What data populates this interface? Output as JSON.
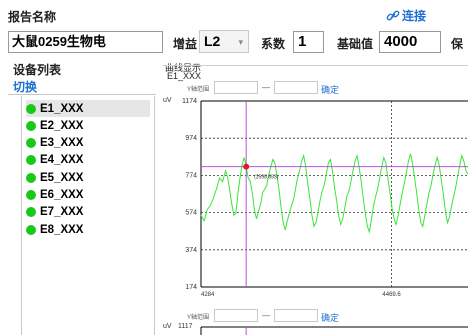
{
  "header": {
    "report_label": "报告名称",
    "connect_label": "连接",
    "report_name_value": "大鼠0259生物电",
    "gain_label": "增益",
    "gain_value": "L2",
    "coef_label": "系数",
    "coef_value": "1",
    "base_label": "基础值",
    "base_value": "4000",
    "trailing_label": "保"
  },
  "device_panel": {
    "title": "设备列表",
    "switch_label": "切换",
    "devices": [
      {
        "label": "E1_XXX",
        "selected": true
      },
      {
        "label": "E2_XXX",
        "selected": false
      },
      {
        "label": "E3_XXX",
        "selected": false
      },
      {
        "label": "E4_XXX",
        "selected": false
      },
      {
        "label": "E5_XXX",
        "selected": false
      },
      {
        "label": "E6_XXX",
        "selected": false
      },
      {
        "label": "E7_XXX",
        "selected": false
      },
      {
        "label": "E8_XXX",
        "selected": false
      }
    ]
  },
  "curve_panel": {
    "title": "曲线显示",
    "subtitle": "E1_XXX",
    "y_range_label": "Y轴范围",
    "range_separator": "—",
    "confirm_label": "确定",
    "unit_label": "uV",
    "second_unit_label": "uV",
    "second_top_tick": "1117"
  },
  "colors": {
    "accent": "#1e6fd1",
    "signal": "#39e639",
    "cursor": "#b455d6",
    "marker": "#d81e2a",
    "status_dot": "#19c919"
  },
  "chart_data": {
    "type": "line",
    "ylabel": "uV",
    "ylim": [
      174,
      1174
    ],
    "xlim": [
      4284,
      4544
    ],
    "y_ticks": [
      "1174",
      "974",
      "774",
      "574",
      "374",
      "174"
    ],
    "x_ticks": [
      {
        "value": 4284,
        "label": "4284"
      },
      {
        "value": 4469.6,
        "label": "4469.6"
      }
    ],
    "cursor": {
      "x": 4328,
      "y": 821,
      "label": "(2598.653)"
    },
    "series": [
      {
        "values": [
          [
            4284,
            560
          ],
          [
            4287,
            530
          ],
          [
            4290,
            590
          ],
          [
            4293,
            610
          ],
          [
            4296,
            650
          ],
          [
            4299,
            700
          ],
          [
            4302,
            760
          ],
          [
            4305,
            740
          ],
          [
            4308,
            800
          ],
          [
            4310,
            760
          ],
          [
            4312,
            690
          ],
          [
            4314,
            620
          ],
          [
            4316,
            560
          ],
          [
            4318,
            570
          ],
          [
            4320,
            680
          ],
          [
            4322,
            760
          ],
          [
            4324,
            830
          ],
          [
            4326,
            870
          ],
          [
            4328,
            821
          ],
          [
            4330,
            760
          ],
          [
            4332,
            740
          ],
          [
            4334,
            680
          ],
          [
            4336,
            590
          ],
          [
            4338,
            540
          ],
          [
            4340,
            580
          ],
          [
            4342,
            620
          ],
          [
            4344,
            680
          ],
          [
            4346,
            700
          ],
          [
            4348,
            720
          ],
          [
            4350,
            780
          ],
          [
            4352,
            820
          ],
          [
            4354,
            860
          ],
          [
            4356,
            840
          ],
          [
            4358,
            770
          ],
          [
            4360,
            700
          ],
          [
            4362,
            600
          ],
          [
            4364,
            520
          ],
          [
            4366,
            480
          ],
          [
            4368,
            530
          ],
          [
            4370,
            570
          ],
          [
            4372,
            610
          ],
          [
            4374,
            640
          ],
          [
            4376,
            700
          ],
          [
            4378,
            760
          ],
          [
            4380,
            800
          ],
          [
            4382,
            850
          ],
          [
            4384,
            880
          ],
          [
            4386,
            820
          ],
          [
            4388,
            730
          ],
          [
            4390,
            650
          ],
          [
            4392,
            560
          ],
          [
            4394,
            500
          ],
          [
            4396,
            520
          ],
          [
            4398,
            580
          ],
          [
            4400,
            640
          ],
          [
            4402,
            690
          ],
          [
            4404,
            720
          ],
          [
            4406,
            780
          ],
          [
            4408,
            840
          ],
          [
            4410,
            860
          ],
          [
            4412,
            800
          ],
          [
            4414,
            710
          ],
          [
            4416,
            640
          ],
          [
            4418,
            560
          ],
          [
            4420,
            510
          ],
          [
            4422,
            540
          ],
          [
            4424,
            600
          ],
          [
            4426,
            660
          ],
          [
            4428,
            690
          ],
          [
            4430,
            740
          ],
          [
            4432,
            800
          ],
          [
            4434,
            850
          ],
          [
            4436,
            880
          ],
          [
            4438,
            820
          ],
          [
            4440,
            740
          ],
          [
            4442,
            650
          ],
          [
            4444,
            570
          ],
          [
            4446,
            500
          ],
          [
            4448,
            470
          ],
          [
            4450,
            540
          ],
          [
            4452,
            610
          ],
          [
            4454,
            660
          ],
          [
            4456,
            700
          ],
          [
            4458,
            760
          ],
          [
            4460,
            820
          ],
          [
            4462,
            870
          ],
          [
            4464,
            840
          ],
          [
            4466,
            760
          ],
          [
            4468,
            680
          ],
          [
            4470,
            600
          ],
          [
            4472,
            540
          ],
          [
            4474,
            510
          ],
          [
            4476,
            560
          ],
          [
            4478,
            620
          ],
          [
            4480,
            680
          ],
          [
            4482,
            730
          ],
          [
            4484,
            790
          ],
          [
            4486,
            850
          ],
          [
            4488,
            890
          ],
          [
            4490,
            840
          ],
          [
            4492,
            760
          ],
          [
            4494,
            680
          ],
          [
            4496,
            590
          ],
          [
            4498,
            520
          ],
          [
            4500,
            500
          ],
          [
            4502,
            560
          ],
          [
            4504,
            620
          ],
          [
            4506,
            680
          ],
          [
            4508,
            720
          ],
          [
            4510,
            780
          ],
          [
            4512,
            830
          ],
          [
            4514,
            870
          ],
          [
            4516,
            830
          ],
          [
            4518,
            750
          ],
          [
            4520,
            670
          ],
          [
            4522,
            580
          ],
          [
            4524,
            520
          ],
          [
            4526,
            550
          ],
          [
            4528,
            610
          ],
          [
            4530,
            660
          ],
          [
            4532,
            710
          ],
          [
            4534,
            770
          ],
          [
            4536,
            830
          ],
          [
            4538,
            880
          ],
          [
            4540,
            850
          ],
          [
            4542,
            800
          ],
          [
            4544,
            780
          ]
        ]
      }
    ]
  }
}
